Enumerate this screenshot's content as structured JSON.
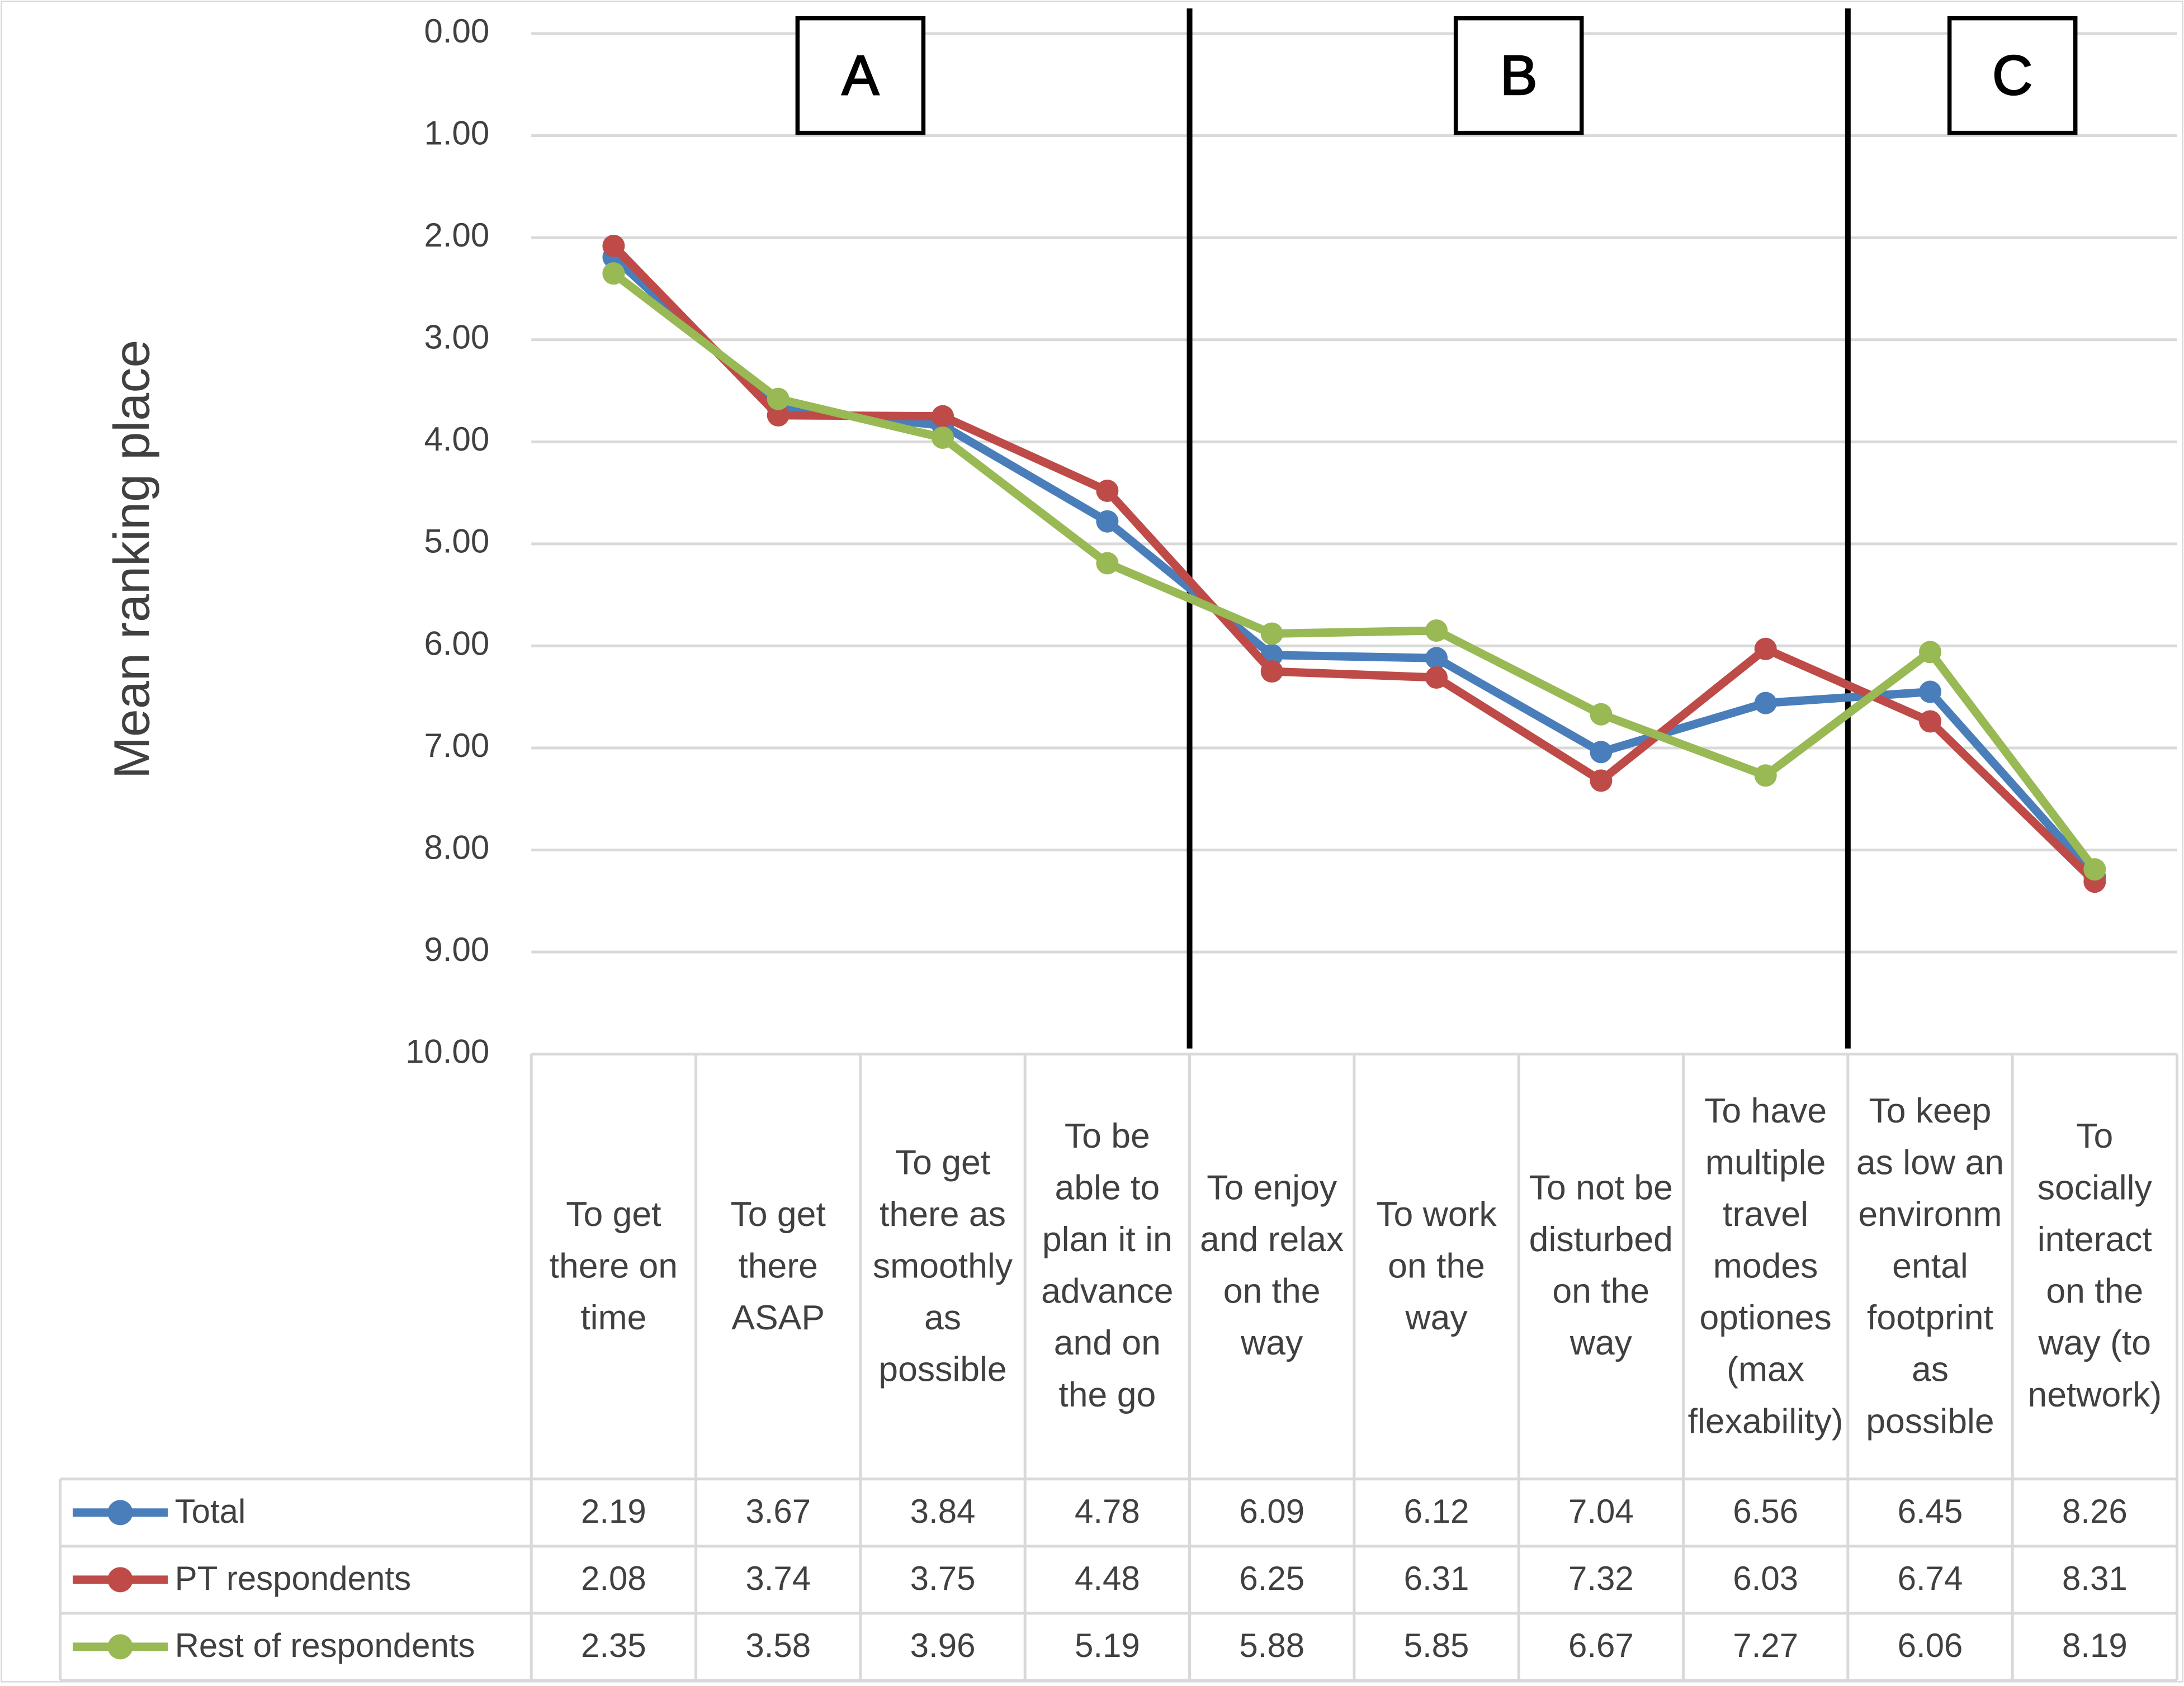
{
  "chart_data": {
    "type": "line",
    "y_axis_label": "Mean ranking  place",
    "y_inverted": true,
    "ylim": [
      0,
      10
    ],
    "yticks": [
      {
        "value": 0,
        "label": "0.00"
      },
      {
        "value": 1,
        "label": "1.00"
      },
      {
        "value": 2,
        "label": "2.00"
      },
      {
        "value": 3,
        "label": "3.00"
      },
      {
        "value": 4,
        "label": "4.00"
      },
      {
        "value": 5,
        "label": "5.00"
      },
      {
        "value": 6,
        "label": "6.00"
      },
      {
        "value": 7,
        "label": "7.00"
      },
      {
        "value": 8,
        "label": "8.00"
      },
      {
        "value": 9,
        "label": "9.00"
      },
      {
        "value": 10,
        "label": "10.00"
      }
    ],
    "grid": true,
    "annotations": [
      "A",
      "B",
      "C"
    ],
    "categories": [
      "To get there on time",
      "To get there ASAP",
      "To get there as smoothly as possible",
      "To be able to plan it in advance and on the go",
      "To enjoy and relax on the way",
      "To work on the way",
      "To not be disturbed on the way",
      "To have multiple travel modes optiones (max flexability)",
      "To keep as low an environmental footprint as possible",
      "To socially interact on the way (to network)"
    ],
    "series": [
      {
        "name": "Total",
        "color": "#4a7ebb",
        "values": [
          2.19,
          3.67,
          3.84,
          4.78,
          6.09,
          6.12,
          7.04,
          6.56,
          6.45,
          8.26
        ]
      },
      {
        "name": "PT respondents",
        "color": "#be4b48",
        "values": [
          2.08,
          3.74,
          3.75,
          4.48,
          6.25,
          6.31,
          7.32,
          6.03,
          6.74,
          8.31
        ]
      },
      {
        "name": "Rest of respondents",
        "color": "#98b954",
        "values": [
          2.35,
          3.58,
          3.96,
          5.19,
          5.88,
          5.85,
          6.67,
          7.27,
          6.06,
          8.19
        ]
      }
    ]
  }
}
